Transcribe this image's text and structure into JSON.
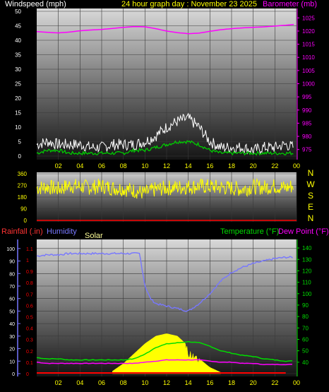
{
  "header": {
    "left_label": "Windspeed (mph)",
    "center_label": "24 hour graph day : November 23 2025",
    "right_label": "Barometer (mb)"
  },
  "colors": {
    "wind_gust": "#ffffff",
    "wind_avg": "#00cc00",
    "barometer": "#ff00ff",
    "wind_dir": "#ffff00",
    "humidity": "#7777ff",
    "temperature": "#00dd00",
    "dew_point": "#ff00ff",
    "rainfall": "#ff0000",
    "solar": "#ffff00",
    "time_axis": "#ffff00"
  },
  "time_ticks": [
    "02",
    "04",
    "06",
    "08",
    "10",
    "12",
    "14",
    "16",
    "18",
    "20",
    "22",
    "00"
  ],
  "chart_data": [
    {
      "type": "line",
      "id": "wind-barometer",
      "x_hours": [
        0,
        23.75
      ],
      "left_axis": {
        "label": "Windspeed (mph)",
        "ticks": [
          0,
          5,
          10,
          15,
          20,
          25,
          30,
          35,
          40,
          45,
          50
        ],
        "range": [
          0,
          50
        ]
      },
      "right_axis": {
        "label": "Barometer (mb)",
        "ticks": [
          975,
          980,
          985,
          990,
          995,
          1000,
          1005,
          1010,
          1015,
          1020,
          1025
        ],
        "range": [
          972.5,
          1027.5
        ]
      },
      "series": [
        {
          "name": "Barometer (mb)",
          "x": [
            0,
            1,
            2,
            3,
            4,
            5,
            6,
            7,
            8,
            9,
            10,
            11,
            12,
            13,
            14,
            15,
            16,
            17,
            18,
            19,
            20,
            21,
            22,
            23,
            23.75
          ],
          "values": [
            1019.8,
            1019.5,
            1019.3,
            1019.6,
            1020.1,
            1020.4,
            1020.6,
            1021.0,
            1021.4,
            1021.7,
            1021.6,
            1020.9,
            1020.0,
            1019.4,
            1019.0,
            1019.2,
            1019.9,
            1020.5,
            1020.9,
            1021.2,
            1021.4,
            1021.6,
            1021.9,
            1022.2,
            1022.5
          ]
        },
        {
          "name": "Wind gust (mph)",
          "x": [
            0,
            1,
            2,
            3,
            4,
            5,
            6,
            7,
            8,
            9,
            10,
            11,
            12,
            13,
            14,
            15,
            16,
            17,
            18,
            19,
            20,
            21,
            22,
            23,
            23.75
          ],
          "values": [
            4,
            5,
            4,
            4,
            4,
            3,
            3,
            4,
            4,
            4,
            5,
            7,
            10,
            12,
            13,
            10,
            5,
            3,
            3,
            3,
            2,
            3,
            3,
            4,
            3
          ]
        },
        {
          "name": "Wind avg (mph)",
          "x": [
            0,
            1,
            2,
            3,
            4,
            5,
            6,
            7,
            8,
            9,
            10,
            11,
            12,
            13,
            14,
            15,
            16,
            17,
            18,
            19,
            20,
            21,
            22,
            23,
            23.75
          ],
          "values": [
            1,
            2,
            2,
            1,
            1,
            1,
            1,
            1,
            1,
            2,
            2,
            3,
            4,
            5,
            5,
            4,
            2,
            1,
            1,
            1,
            1,
            1,
            1,
            1,
            1
          ]
        }
      ]
    },
    {
      "type": "scatter",
      "id": "wind-direction",
      "left_axis": {
        "ticks": [
          0,
          90,
          180,
          270,
          360
        ],
        "range": [
          0,
          360
        ]
      },
      "direction_labels": [
        "N",
        "W",
        "S",
        "E",
        "N"
      ],
      "series": [
        {
          "name": "Wind direction (deg)",
          "x": [
            0,
            1,
            2,
            3,
            4,
            5,
            6,
            7,
            8,
            9,
            10,
            11,
            12,
            13,
            14,
            15,
            16,
            17,
            18,
            19,
            20,
            21,
            22,
            23,
            23.75
          ],
          "values": [
            250,
            260,
            240,
            270,
            260,
            255,
            265,
            250,
            245,
            230,
            210,
            240,
            250,
            255,
            260,
            265,
            260,
            255,
            250,
            240,
            260,
            255,
            265,
            250,
            270
          ]
        }
      ]
    },
    {
      "type": "line",
      "id": "temp-humidity",
      "header": {
        "rainfall": "Rainfall (.in)",
        "humidity": "Humidity",
        "solar": "Solar",
        "temperature": "Temperature (°F)",
        "dew_point": "Dew Point (°F)"
      },
      "left_axis": {
        "label": "Humidity",
        "ticks": [
          0,
          10,
          20,
          30,
          40,
          50,
          60,
          70,
          80,
          90,
          100
        ],
        "range": [
          0,
          105
        ]
      },
      "rain_axis": {
        "label": "Rainfall (.in)",
        "ticks": [
          "0",
          "0.1",
          "0.2",
          "0.3",
          "0.4",
          "0.5",
          "0.6",
          "0.7",
          "0.8",
          "0.9",
          "1",
          "1.1"
        ],
        "range": [
          0,
          1.155
        ]
      },
      "right_axis": {
        "label": "Temperature (°F)",
        "ticks": [
          40,
          50,
          60,
          70,
          80,
          90,
          100,
          110,
          120,
          130,
          140
        ],
        "range": [
          30,
          145
        ]
      },
      "series": [
        {
          "name": "Humidity",
          "x": [
            0,
            1,
            2,
            3,
            4,
            5,
            6,
            7,
            8,
            9,
            9.5,
            10,
            10.5,
            11,
            12,
            13,
            14,
            15,
            16,
            17,
            18,
            19,
            20,
            21,
            22,
            23,
            23.75
          ],
          "values": [
            94,
            95,
            95,
            96,
            96,
            96,
            96,
            96,
            96,
            96,
            96,
            70,
            60,
            56,
            54,
            52,
            50,
            56,
            64,
            74,
            81,
            85,
            88,
            90,
            92,
            93,
            93
          ]
        },
        {
          "name": "Temperature (°F)",
          "x": [
            0,
            1,
            2,
            3,
            4,
            5,
            6,
            7,
            8,
            9,
            10,
            11,
            12,
            13,
            14,
            15,
            16,
            17,
            18,
            19,
            20,
            21,
            22,
            23,
            23.75
          ],
          "values": [
            44,
            43,
            43,
            42,
            42,
            42,
            42,
            42,
            42,
            43,
            47,
            53,
            56,
            57,
            58,
            57,
            54,
            50,
            48,
            46,
            45,
            43,
            42,
            41,
            41
          ]
        },
        {
          "name": "Dew Point (°F)",
          "x": [
            0,
            1,
            2,
            3,
            4,
            5,
            6,
            7,
            8,
            9,
            10,
            11,
            12,
            13,
            14,
            15,
            16,
            17,
            18,
            19,
            20,
            21,
            22,
            23,
            23.75
          ],
          "values": [
            40,
            39,
            39,
            39,
            39,
            39,
            39,
            39,
            39,
            39,
            40,
            41,
            42,
            42,
            42,
            42,
            41,
            40,
            40,
            39,
            39,
            38,
            38,
            38,
            38
          ]
        },
        {
          "name": "Solar",
          "x": [
            7,
            8,
            9,
            10,
            11,
            12,
            13,
            14,
            15,
            16,
            17
          ],
          "values": [
            2,
            8,
            16,
            24,
            30,
            32,
            30,
            22,
            12,
            5,
            1
          ]
        },
        {
          "name": "Rainfall (.in)",
          "x": [
            0,
            23.75
          ],
          "values": [
            0,
            0
          ]
        }
      ]
    }
  ]
}
